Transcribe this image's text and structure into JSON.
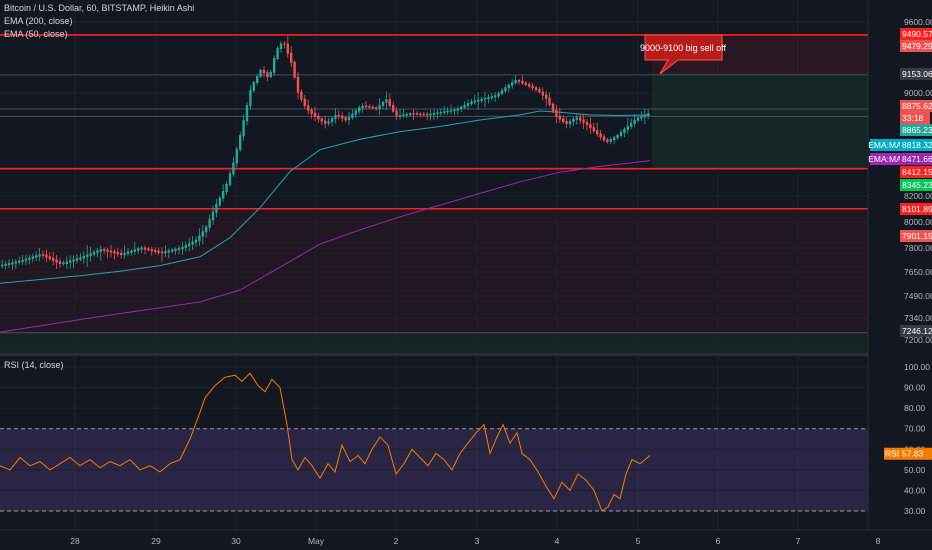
{
  "legend": {
    "title": "Bitcoin / U.S. Dollar, 60, BITSTAMP, Heikin Ashi",
    "ema200": "EMA (200, close)",
    "ema50": "EMA (50, close)",
    "rsi": "RSI (14, close)"
  },
  "colors": {
    "background": "#131722",
    "up": "#26a69a",
    "down": "#ef5350",
    "ema50": "#26a1b6",
    "ema200": "#9c27b0",
    "rsi": "#f57c00",
    "level_line": "#ff1f1f"
  },
  "annotation": {
    "text": "9000-9100 big sell off"
  },
  "chart_data": [
    {
      "type": "candlestick",
      "title": "Bitcoin / U.S. Dollar, 60, BITSTAMP, Heikin Ashi",
      "x_ticks": [
        "28",
        "29",
        "30",
        "May",
        "2",
        "3",
        "4",
        "5",
        "6",
        "7",
        "8"
      ],
      "y_ticks": [
        9600,
        9000,
        8200,
        8000,
        7800,
        7650,
        7490,
        7340,
        7200
      ],
      "ylim": [
        7150,
        9700
      ],
      "price_tags": [
        {
          "value": "9490.57",
          "kind": "red-line"
        },
        {
          "value": "9479.29",
          "kind": "red"
        },
        {
          "value": "9153.06",
          "kind": "dark"
        },
        {
          "value": "8875.62",
          "kind": "red"
        },
        {
          "value": "33:18",
          "kind": "red-small"
        },
        {
          "value": "8865.23",
          "kind": "teal"
        },
        {
          "value": "8818.32",
          "kind": "cyan",
          "label": "EMA:MA"
        },
        {
          "value": "8471.66",
          "kind": "purple",
          "label": "EMA:MA"
        },
        {
          "value": "8412.15",
          "kind": "red-line"
        },
        {
          "value": "8345.23",
          "kind": "green"
        },
        {
          "value": "8101.89",
          "kind": "red-line"
        },
        {
          "value": "7901.15",
          "kind": "red"
        },
        {
          "value": "7246.12",
          "kind": "dark"
        }
      ],
      "horizontal_levels": [
        9490.57,
        8412.15,
        8101.89
      ],
      "grey_levels": [
        9153.06,
        8875.62,
        8818.32,
        7246.12
      ],
      "series": [
        {
          "name": "EMA (50, close)",
          "points": [
            [
              0,
              7575
            ],
            [
              40,
              7600
            ],
            [
              80,
              7625
            ],
            [
              120,
              7655
            ],
            [
              160,
              7690
            ],
            [
              200,
              7745
            ],
            [
              230,
              7880
            ],
            [
              260,
              8110
            ],
            [
              290,
              8390
            ],
            [
              320,
              8560
            ],
            [
              360,
              8640
            ],
            [
              400,
              8700
            ],
            [
              440,
              8740
            ],
            [
              480,
              8790
            ],
            [
              520,
              8830
            ],
            [
              540,
              8860
            ],
            [
              560,
              8850
            ],
            [
              590,
              8830
            ],
            [
              620,
              8825
            ],
            [
              650,
              8830
            ]
          ]
        },
        {
          "name": "EMA (200, close)",
          "points": [
            [
              0,
              7250
            ],
            [
              50,
              7300
            ],
            [
              100,
              7350
            ],
            [
              150,
              7400
            ],
            [
              200,
              7450
            ],
            [
              240,
              7530
            ],
            [
              280,
              7680
            ],
            [
              320,
              7830
            ],
            [
              360,
              7940
            ],
            [
              400,
              8040
            ],
            [
              440,
              8130
            ],
            [
              480,
              8220
            ],
            [
              520,
              8310
            ],
            [
              560,
              8385
            ],
            [
              600,
              8430
            ],
            [
              650,
              8475
            ]
          ]
        },
        {
          "name": "Heikin Ashi BTCUSD",
          "points": [
            [
              0,
              7690
            ],
            [
              20,
              7720
            ],
            [
              40,
              7760
            ],
            [
              60,
              7700
            ],
            [
              80,
              7740
            ],
            [
              100,
              7790
            ],
            [
              120,
              7760
            ],
            [
              140,
              7800
            ],
            [
              160,
              7770
            ],
            [
              180,
              7800
            ],
            [
              195,
              7860
            ],
            [
              205,
              7960
            ],
            [
              215,
              8130
            ],
            [
              225,
              8280
            ],
            [
              232,
              8450
            ],
            [
              240,
              8700
            ],
            [
              250,
              9050
            ],
            [
              260,
              9200
            ],
            [
              268,
              9120
            ],
            [
              275,
              9360
            ],
            [
              282,
              9440
            ],
            [
              290,
              9260
            ],
            [
              297,
              9000
            ],
            [
              305,
              8880
            ],
            [
              315,
              8810
            ],
            [
              325,
              8760
            ],
            [
              335,
              8830
            ],
            [
              345,
              8790
            ],
            [
              360,
              8900
            ],
            [
              375,
              8880
            ],
            [
              385,
              8950
            ],
            [
              395,
              8820
            ],
            [
              410,
              8840
            ],
            [
              425,
              8830
            ],
            [
              440,
              8850
            ],
            [
              455,
              8870
            ],
            [
              470,
              8930
            ],
            [
              485,
              8960
            ],
            [
              495,
              8980
            ],
            [
              505,
              9050
            ],
            [
              515,
              9110
            ],
            [
              525,
              9070
            ],
            [
              535,
              9030
            ],
            [
              545,
              8960
            ],
            [
              555,
              8820
            ],
            [
              565,
              8760
            ],
            [
              575,
              8810
            ],
            [
              585,
              8760
            ],
            [
              595,
              8690
            ],
            [
              605,
              8620
            ],
            [
              615,
              8660
            ],
            [
              625,
              8730
            ],
            [
              635,
              8800
            ],
            [
              645,
              8830
            ],
            [
              650,
              8850
            ]
          ]
        }
      ]
    },
    {
      "type": "line",
      "title": "RSI (14, close)",
      "y_ticks": [
        100.0,
        90.0,
        80.0,
        70.0,
        60.0,
        50.0,
        40.0,
        30.0
      ],
      "ylim": [
        25,
        105
      ],
      "band": [
        30,
        70
      ],
      "last_value": {
        "label": "RSI",
        "value": "57.83"
      },
      "series": [
        {
          "name": "RSI (14, close)",
          "points": [
            [
              0,
              52
            ],
            [
              10,
              50
            ],
            [
              20,
              56
            ],
            [
              30,
              52
            ],
            [
              40,
              54
            ],
            [
              50,
              50
            ],
            [
              60,
              53
            ],
            [
              70,
              56
            ],
            [
              80,
              52
            ],
            [
              90,
              55
            ],
            [
              100,
              51
            ],
            [
              110,
              54
            ],
            [
              120,
              52
            ],
            [
              130,
              55
            ],
            [
              140,
              50
            ],
            [
              150,
              52
            ],
            [
              160,
              49
            ],
            [
              170,
              53
            ],
            [
              180,
              55
            ],
            [
              190,
              65
            ],
            [
              200,
              78
            ],
            [
              205,
              85
            ],
            [
              215,
              91
            ],
            [
              225,
              95
            ],
            [
              235,
              96
            ],
            [
              242,
              93
            ],
            [
              250,
              97
            ],
            [
              258,
              91
            ],
            [
              265,
              88
            ],
            [
              272,
              94
            ],
            [
              280,
              90
            ],
            [
              287,
              72
            ],
            [
              292,
              55
            ],
            [
              298,
              50
            ],
            [
              305,
              56
            ],
            [
              312,
              52
            ],
            [
              320,
              46
            ],
            [
              328,
              53
            ],
            [
              335,
              49
            ],
            [
              342,
              62
            ],
            [
              350,
              54
            ],
            [
              358,
              57
            ],
            [
              365,
              53
            ],
            [
              372,
              60
            ],
            [
              380,
              66
            ],
            [
              388,
              62
            ],
            [
              396,
              48
            ],
            [
              404,
              53
            ],
            [
              412,
              60
            ],
            [
              420,
              56
            ],
            [
              428,
              52
            ],
            [
              436,
              58
            ],
            [
              444,
              55
            ],
            [
              452,
              50
            ],
            [
              460,
              58
            ],
            [
              468,
              63
            ],
            [
              476,
              68
            ],
            [
              484,
              72
            ],
            [
              490,
              58
            ],
            [
              497,
              66
            ],
            [
              503,
              72
            ],
            [
              510,
              63
            ],
            [
              517,
              68
            ],
            [
              522,
              58
            ],
            [
              530,
              55
            ],
            [
              538,
              49
            ],
            [
              546,
              42
            ],
            [
              554,
              36
            ],
            [
              562,
              44
            ],
            [
              570,
              40
            ],
            [
              578,
              48
            ],
            [
              586,
              45
            ],
            [
              594,
              40
            ],
            [
              602,
              30
            ],
            [
              608,
              32
            ],
            [
              614,
              38
            ],
            [
              620,
              36
            ],
            [
              626,
              48
            ],
            [
              632,
              55
            ],
            [
              640,
              53
            ],
            [
              650,
              57
            ]
          ]
        }
      ]
    }
  ]
}
